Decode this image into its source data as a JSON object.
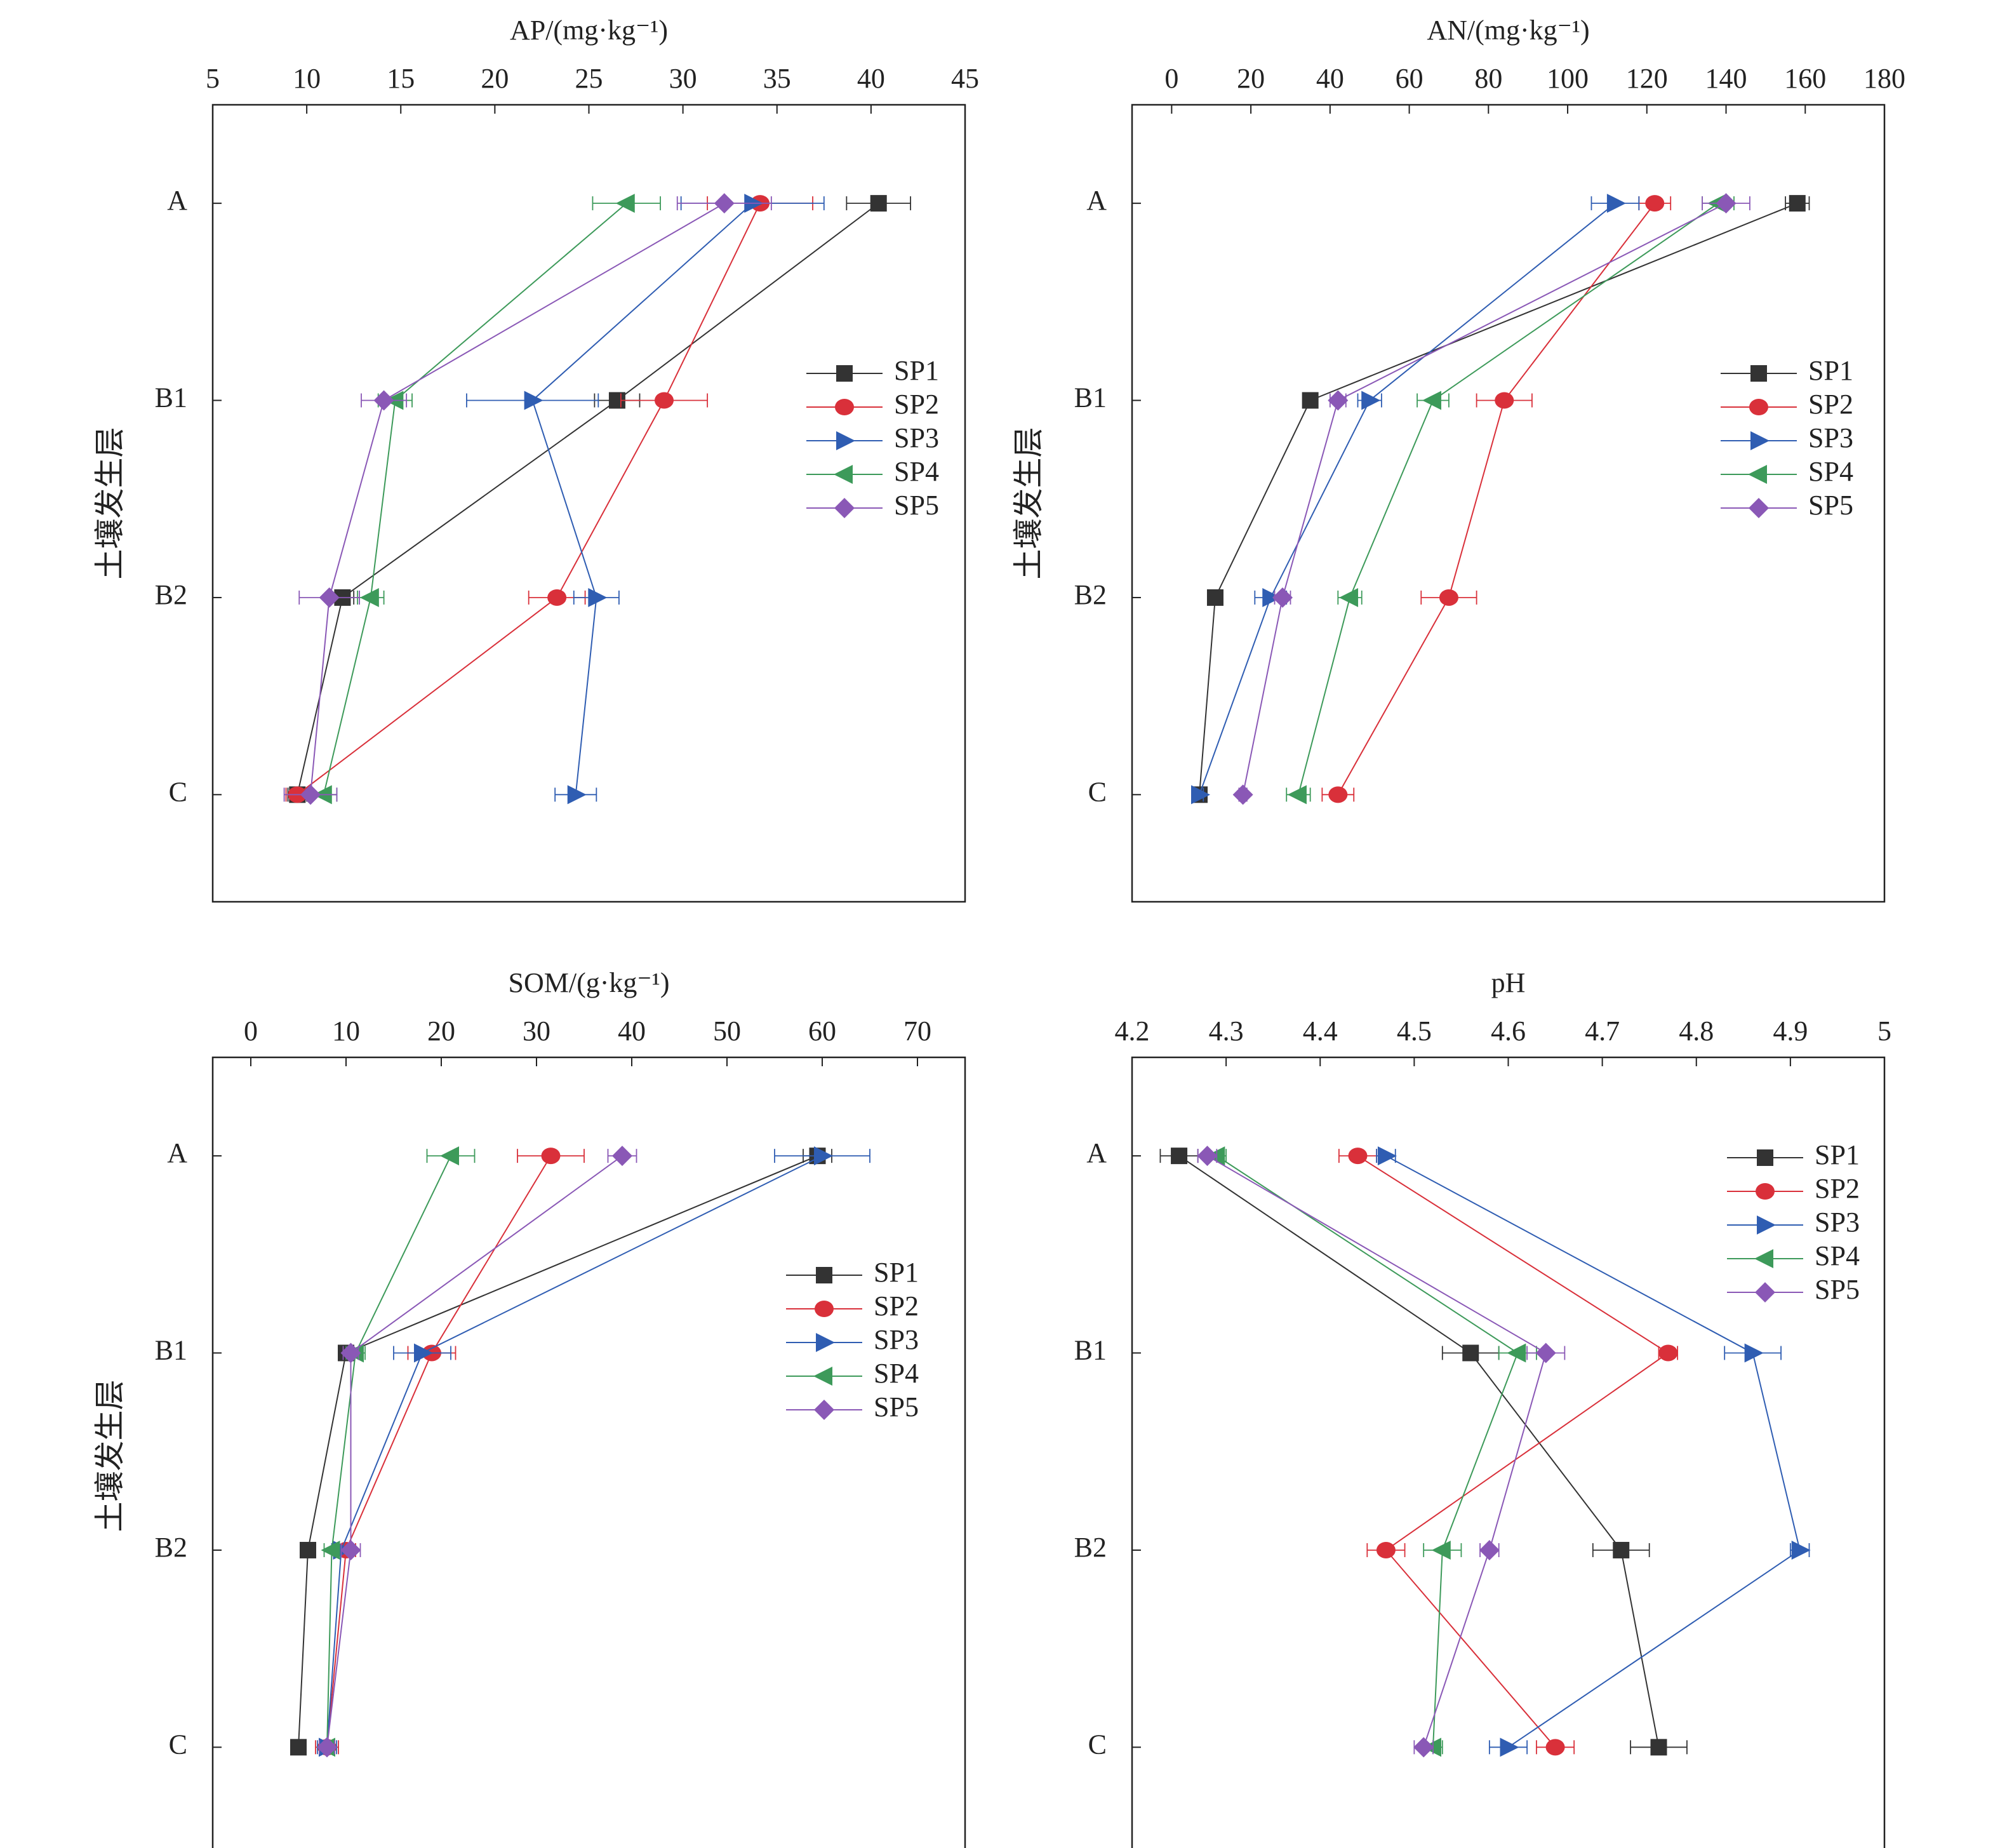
{
  "chart_data": [
    {
      "type": "line",
      "title": "AP/(mg·kg⁻¹)",
      "ylabel": "土壤发生层",
      "xlim": [
        5,
        45
      ],
      "xticks": [
        5,
        10,
        15,
        20,
        25,
        30,
        35,
        40,
        45
      ],
      "categories": [
        "A",
        "B1",
        "B2",
        "C"
      ],
      "legend_position": "right-middle",
      "series": [
        {
          "name": "SP1",
          "values": [
            40.4,
            26.5,
            11.9,
            9.5
          ],
          "errors": [
            1.7,
            1.2,
            0.6,
            0.5
          ]
        },
        {
          "name": "SP2",
          "values": [
            34.1,
            29.0,
            23.3,
            9.5
          ],
          "errors": [
            2.8,
            2.3,
            1.5,
            0.6
          ]
        },
        {
          "name": "SP3",
          "values": [
            33.7,
            22.0,
            25.4,
            24.3
          ],
          "errors": [
            3.8,
            3.5,
            1.2,
            1.1
          ]
        },
        {
          "name": "SP4",
          "values": [
            27.0,
            14.7,
            13.4,
            10.9
          ],
          "errors": [
            1.8,
            0.9,
            0.7,
            0.7
          ]
        },
        {
          "name": "SP5",
          "values": [
            32.2,
            14.1,
            11.2,
            10.2
          ],
          "errors": [
            2.5,
            1.2,
            1.6,
            1.4
          ]
        }
      ]
    },
    {
      "type": "line",
      "title": "AN/(mg·kg⁻¹)",
      "ylabel": "土壤发生层",
      "xlim": [
        -10,
        180
      ],
      "xticks": [
        0,
        20,
        40,
        60,
        80,
        100,
        120,
        140,
        160,
        180
      ],
      "categories": [
        "A",
        "B1",
        "B2",
        "C"
      ],
      "legend_position": "right-middle",
      "series": [
        {
          "name": "SP1",
          "values": [
            158,
            35,
            11,
            7
          ],
          "errors": [
            3,
            1.5,
            1,
            1
          ]
        },
        {
          "name": "SP2",
          "values": [
            122,
            84,
            70,
            42
          ],
          "errors": [
            4,
            7,
            7,
            4
          ]
        },
        {
          "name": "SP3",
          "values": [
            112,
            50,
            25,
            7
          ],
          "errors": [
            6,
            3,
            4,
            1
          ]
        },
        {
          "name": "SP4",
          "values": [
            138,
            66,
            45,
            32
          ],
          "errors": [
            4,
            4,
            3,
            3
          ]
        },
        {
          "name": "SP5",
          "values": [
            140,
            42,
            28,
            18
          ],
          "errors": [
            6,
            2,
            2,
            1
          ]
        }
      ]
    },
    {
      "type": "line",
      "title": "SOM/(g·kg⁻¹)",
      "ylabel": "土壤发生层",
      "xlim": [
        -4,
        75
      ],
      "xticks": [
        0,
        10,
        20,
        30,
        40,
        50,
        60,
        70
      ],
      "categories": [
        "A",
        "B1",
        "B2",
        "C"
      ],
      "legend_position": "right-middle",
      "series": [
        {
          "name": "SP1",
          "values": [
            59.5,
            10,
            6,
            5
          ],
          "errors": [
            1.5,
            0.8,
            0.5,
            0.5
          ]
        },
        {
          "name": "SP2",
          "values": [
            31.5,
            19,
            10,
            8
          ],
          "errors": [
            3.5,
            2.5,
            1,
            1.2
          ]
        },
        {
          "name": "SP3",
          "values": [
            60,
            18,
            9.5,
            8
          ],
          "errors": [
            5,
            3,
            1,
            1
          ]
        },
        {
          "name": "SP4",
          "values": [
            21,
            11,
            8.5,
            8
          ],
          "errors": [
            2.5,
            1,
            0.8,
            0.8
          ]
        },
        {
          "name": "SP5",
          "values": [
            39,
            10.5,
            10.5,
            8
          ],
          "errors": [
            1.5,
            0.8,
            1,
            0.8
          ]
        }
      ]
    },
    {
      "type": "line",
      "title": "pH",
      "xlim": [
        4.2,
        5.0
      ],
      "xticks": [
        4.2,
        4.3,
        4.4,
        4.5,
        4.6,
        4.7,
        4.8,
        4.9,
        5.0
      ],
      "categories": [
        "A",
        "B1",
        "B2",
        "C"
      ],
      "legend_position": "top-right",
      "series": [
        {
          "name": "SP1",
          "values": [
            4.25,
            4.56,
            4.72,
            4.76
          ],
          "errors": [
            0.02,
            0.03,
            0.03,
            0.03
          ]
        },
        {
          "name": "SP2",
          "values": [
            4.44,
            4.77,
            4.47,
            4.65
          ],
          "errors": [
            0.02,
            0.01,
            0.02,
            0.02
          ]
        },
        {
          "name": "SP3",
          "values": [
            4.47,
            4.86,
            4.91,
            4.6
          ],
          "errors": [
            0.01,
            0.03,
            0.01,
            0.02
          ]
        },
        {
          "name": "SP4",
          "values": [
            4.29,
            4.61,
            4.53,
            4.52
          ],
          "errors": [
            0.01,
            0.02,
            0.02,
            0.01
          ]
        },
        {
          "name": "SP5",
          "values": [
            4.28,
            4.64,
            4.58,
            4.51
          ],
          "errors": [
            0.01,
            0.02,
            0.01,
            0.01
          ]
        }
      ]
    }
  ],
  "styles": {
    "SP1": {
      "color": "#333333",
      "marker": "square"
    },
    "SP2": {
      "color": "#d9303a",
      "marker": "circle"
    },
    "SP3": {
      "color": "#2f5db2",
      "marker": "triangle-right"
    },
    "SP4": {
      "color": "#3d9a5a",
      "marker": "triangle-left"
    },
    "SP5": {
      "color": "#8a58b6",
      "marker": "diamond"
    }
  }
}
